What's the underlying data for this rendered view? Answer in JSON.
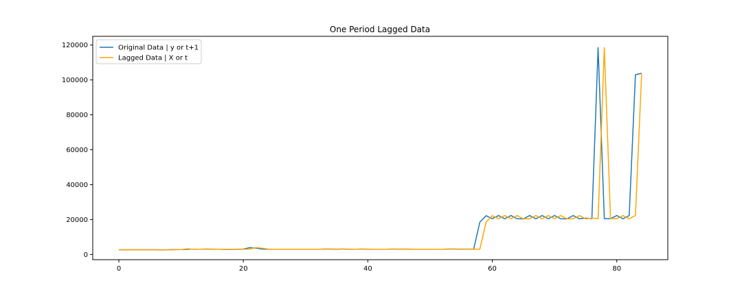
{
  "chart_data": {
    "type": "line",
    "title": "One Period Lagged Data",
    "xlabel": "",
    "ylabel": "",
    "xlim": [
      -4.2,
      88.2
    ],
    "ylim": [
      -3000,
      125000
    ],
    "xticks": [
      0,
      20,
      40,
      60,
      80
    ],
    "yticks": [
      0,
      20000,
      40000,
      60000,
      80000,
      100000,
      120000
    ],
    "grid": false,
    "legend_position": "top-left",
    "series": [
      {
        "name": "Original Data | y or t+1",
        "color": "#1f77b4",
        "x": [
          0,
          1,
          2,
          3,
          4,
          5,
          6,
          7,
          8,
          9,
          10,
          11,
          12,
          13,
          14,
          15,
          16,
          17,
          18,
          19,
          20,
          21,
          22,
          23,
          24,
          25,
          26,
          27,
          28,
          29,
          30,
          31,
          32,
          33,
          34,
          35,
          36,
          37,
          38,
          39,
          40,
          41,
          42,
          43,
          44,
          45,
          46,
          47,
          48,
          49,
          50,
          51,
          52,
          53,
          54,
          55,
          56,
          57,
          58,
          59,
          60,
          61,
          62,
          63,
          64,
          65,
          66,
          67,
          68,
          69,
          70,
          71,
          72,
          73,
          74,
          75,
          76,
          77,
          78,
          79,
          80,
          81,
          82,
          83,
          84
        ],
        "values": [
          2700,
          2700,
          2700,
          2700,
          2700,
          2700,
          2700,
          2600,
          2700,
          2800,
          2800,
          3100,
          3000,
          3000,
          3100,
          3000,
          3000,
          2900,
          2900,
          3000,
          3100,
          3900,
          3600,
          3100,
          3000,
          3000,
          3000,
          3000,
          3000,
          3000,
          3000,
          3000,
          3000,
          3100,
          3100,
          3000,
          3100,
          3000,
          3000,
          3100,
          3000,
          3000,
          3000,
          3000,
          3100,
          3000,
          3100,
          3000,
          3000,
          3000,
          3000,
          3000,
          3000,
          3100,
          3100,
          3000,
          3100,
          3000,
          18500,
          22200,
          20500,
          22300,
          20400,
          22300,
          20400,
          20400,
          22300,
          20400,
          22300,
          20400,
          22300,
          20400,
          20400,
          22300,
          20400,
          20800,
          20500,
          118500,
          20500,
          20500,
          22300,
          20400,
          22300,
          103000,
          103800
        ]
      },
      {
        "name": "Lagged Data | X or t",
        "color": "#ffa500",
        "x": [
          0,
          1,
          2,
          3,
          4,
          5,
          6,
          7,
          8,
          9,
          10,
          11,
          12,
          13,
          14,
          15,
          16,
          17,
          18,
          19,
          20,
          21,
          22,
          23,
          24,
          25,
          26,
          27,
          28,
          29,
          30,
          31,
          32,
          33,
          34,
          35,
          36,
          37,
          38,
          39,
          40,
          41,
          42,
          43,
          44,
          45,
          46,
          47,
          48,
          49,
          50,
          51,
          52,
          53,
          54,
          55,
          56,
          57,
          58,
          59,
          60,
          61,
          62,
          63,
          64,
          65,
          66,
          67,
          68,
          69,
          70,
          71,
          72,
          73,
          74,
          75,
          76,
          77,
          78,
          79,
          80,
          81,
          82,
          83,
          84
        ],
        "values": [
          2700,
          2700,
          2700,
          2700,
          2700,
          2700,
          2700,
          2700,
          2600,
          2700,
          2800,
          2800,
          3100,
          3000,
          3000,
          3100,
          3000,
          3000,
          2900,
          2900,
          3000,
          3100,
          3900,
          3600,
          3100,
          3000,
          3000,
          3000,
          3000,
          3000,
          3000,
          3000,
          3000,
          3000,
          3100,
          3100,
          3000,
          3100,
          3000,
          3000,
          3100,
          3000,
          3000,
          3000,
          3000,
          3100,
          3000,
          3100,
          3000,
          3000,
          3000,
          3000,
          3000,
          3000,
          3100,
          3100,
          3000,
          3100,
          3000,
          18500,
          22200,
          20500,
          22300,
          20400,
          22300,
          20400,
          20400,
          22300,
          20400,
          22300,
          20400,
          22300,
          20400,
          20400,
          22300,
          20400,
          20800,
          20500,
          118500,
          20500,
          20500,
          22300,
          20400,
          22300,
          103800
        ]
      }
    ]
  }
}
